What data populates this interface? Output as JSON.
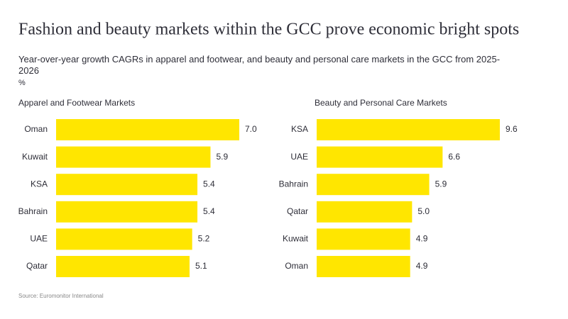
{
  "title": "Fashion and beauty markets within the GCC prove economic bright spots",
  "subtitle": "Year-over-year growth CAGRs in apparel and footwear, and beauty and personal care markets in the GCC from 2025-2026",
  "unit": "%",
  "source": "Source: Euromonitor International",
  "chart_data": [
    {
      "type": "bar",
      "orientation": "horizontal",
      "title": "Apparel and Footwear Markets",
      "categories": [
        "Oman",
        "Kuwait",
        "KSA",
        "Bahrain",
        "UAE",
        "Qatar"
      ],
      "values": [
        7.0,
        5.9,
        5.4,
        5.4,
        5.2,
        5.1
      ],
      "value_labels": [
        "7.0",
        "5.9",
        "5.4",
        "5.4",
        "5.2",
        "5.1"
      ],
      "color": "#ffe600"
    },
    {
      "type": "bar",
      "orientation": "horizontal",
      "title": "Beauty and Personal Care Markets",
      "categories": [
        "KSA",
        "UAE",
        "Bahrain",
        "Qatar",
        "Kuwait",
        "Oman"
      ],
      "values": [
        9.6,
        6.6,
        5.9,
        5.0,
        4.9,
        4.9
      ],
      "value_labels": [
        "9.6",
        "6.6",
        "5.9",
        "5.0",
        "4.9",
        "4.9"
      ],
      "color": "#ffe600"
    }
  ]
}
